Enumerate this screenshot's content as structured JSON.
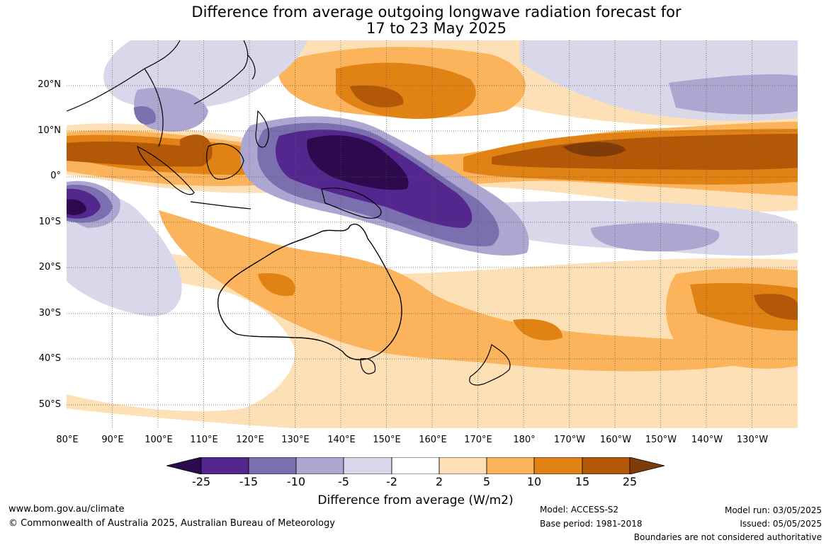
{
  "title": {
    "line1": "Difference from average outgoing longwave radiation forecast for",
    "line2": "17 to 23 May 2025"
  },
  "latitude_labels": [
    "20°N",
    "10°N",
    "0°",
    "10°S",
    "20°S",
    "30°S",
    "40°S",
    "50°S"
  ],
  "longitude_labels": [
    "80°E",
    "90°E",
    "100°E",
    "110°E",
    "120°E",
    "130°E",
    "140°E",
    "150°E",
    "160°E",
    "170°E",
    "180°",
    "170°W",
    "160°W",
    "150°W",
    "140°W",
    "130°W"
  ],
  "colorbar": {
    "ticks": [
      "-25",
      "-15",
      "-10",
      "-5",
      "-2",
      "2",
      "5",
      "10",
      "15",
      "25"
    ],
    "colors": [
      "#2d0a4d",
      "#54278f",
      "#7b6fb0",
      "#aca6d0",
      "#d9d8ea",
      "#ffffff",
      "#fee0b6",
      "#fbb45c",
      "#e08214",
      "#b35806",
      "#7f3b08"
    ],
    "label": "Difference from average (W/m2)"
  },
  "footer": {
    "website": "www.bom.gov.au/climate",
    "copyright": "© Commonwealth of Australia 2025, Australian Bureau of Meteorology",
    "model": "Model: ACCESS-S2",
    "base_period": "Base period: 1981-2018",
    "model_run": "Model run: 03/05/2025",
    "issued": "Issued: 05/05/2025",
    "disclaimer": "Boundaries are not considered authoritative"
  },
  "map": {
    "lon_range": [
      "80°E",
      "120°W"
    ],
    "lat_range": [
      "30°N",
      "55°S"
    ],
    "gridlines": true
  }
}
